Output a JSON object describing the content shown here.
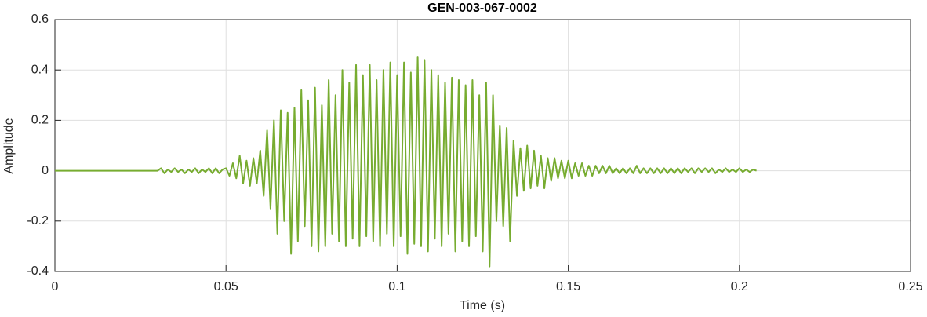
{
  "chart_data": {
    "type": "line",
    "title": "GEN-003-067-0002",
    "xlabel": "Time (s)",
    "ylabel": "Amplitude",
    "xlim": [
      0,
      0.25
    ],
    "xticks": [
      0,
      0.05,
      0.1,
      0.15,
      0.2,
      0.25
    ],
    "ylim": [
      -0.4,
      0.6
    ],
    "yticks": [
      -0.4,
      -0.2,
      0,
      0.2,
      0.4,
      0.6
    ],
    "grid": true,
    "series": [
      {
        "color": "#77ac30",
        "x": [
          0,
          0.03,
          0.031,
          0.032,
          0.033,
          0.034,
          0.035,
          0.036,
          0.037,
          0.038,
          0.039,
          0.04,
          0.041,
          0.042,
          0.043,
          0.044,
          0.045,
          0.046,
          0.047,
          0.048,
          0.049,
          0.05,
          0.051,
          0.052,
          0.053,
          0.054,
          0.055,
          0.056,
          0.057,
          0.058,
          0.059,
          0.06,
          0.061,
          0.062,
          0.063,
          0.064,
          0.065,
          0.066,
          0.067,
          0.068,
          0.069,
          0.07,
          0.071,
          0.072,
          0.073,
          0.074,
          0.075,
          0.076,
          0.077,
          0.078,
          0.079,
          0.08,
          0.081,
          0.082,
          0.083,
          0.084,
          0.085,
          0.086,
          0.087,
          0.088,
          0.089,
          0.09,
          0.091,
          0.092,
          0.093,
          0.094,
          0.095,
          0.096,
          0.097,
          0.098,
          0.099,
          0.1,
          0.101,
          0.102,
          0.103,
          0.104,
          0.105,
          0.106,
          0.107,
          0.108,
          0.109,
          0.11,
          0.111,
          0.112,
          0.113,
          0.114,
          0.115,
          0.116,
          0.117,
          0.118,
          0.119,
          0.12,
          0.121,
          0.122,
          0.123,
          0.124,
          0.125,
          0.126,
          0.127,
          0.128,
          0.129,
          0.13,
          0.131,
          0.132,
          0.133,
          0.134,
          0.135,
          0.136,
          0.137,
          0.138,
          0.139,
          0.14,
          0.141,
          0.142,
          0.143,
          0.144,
          0.145,
          0.146,
          0.147,
          0.148,
          0.149,
          0.15,
          0.151,
          0.152,
          0.153,
          0.154,
          0.155,
          0.156,
          0.157,
          0.158,
          0.159,
          0.16,
          0.161,
          0.162,
          0.163,
          0.164,
          0.165,
          0.166,
          0.167,
          0.168,
          0.169,
          0.17,
          0.171,
          0.172,
          0.173,
          0.174,
          0.175,
          0.176,
          0.177,
          0.178,
          0.179,
          0.18,
          0.181,
          0.182,
          0.183,
          0.184,
          0.185,
          0.186,
          0.187,
          0.188,
          0.189,
          0.19,
          0.191,
          0.192,
          0.193,
          0.194,
          0.195,
          0.196,
          0.197,
          0.198,
          0.199,
          0.2,
          0.201,
          0.202,
          0.203,
          0.204,
          0.205
        ],
        "values": [
          0,
          0,
          0.01,
          -0.01,
          0.005,
          -0.005,
          0.01,
          -0.005,
          0.005,
          -0.01,
          0.005,
          -0.005,
          0.01,
          -0.01,
          0.005,
          -0.005,
          0.01,
          -0.01,
          0.01,
          -0.01,
          0.005,
          0.01,
          -0.02,
          0.03,
          -0.03,
          0.06,
          -0.05,
          0.04,
          -0.06,
          0.05,
          -0.05,
          0.08,
          -0.1,
          0.16,
          -0.15,
          0.2,
          -0.25,
          0.24,
          -0.2,
          0.23,
          -0.33,
          0.25,
          -0.28,
          0.32,
          -0.22,
          0.28,
          -0.3,
          0.33,
          -0.32,
          0.26,
          -0.3,
          0.36,
          -0.25,
          0.3,
          -0.28,
          0.4,
          -0.3,
          0.35,
          -0.27,
          0.42,
          -0.3,
          0.38,
          -0.26,
          0.42,
          -0.28,
          0.36,
          -0.3,
          0.4,
          -0.25,
          0.43,
          -0.3,
          0.38,
          -0.26,
          0.43,
          -0.33,
          0.39,
          -0.29,
          0.45,
          -0.3,
          0.44,
          -0.32,
          0.4,
          -0.27,
          0.38,
          -0.3,
          0.35,
          -0.25,
          0.37,
          -0.32,
          0.36,
          -0.28,
          0.34,
          -0.3,
          0.36,
          -0.26,
          0.3,
          -0.32,
          0.35,
          -0.38,
          0.3,
          -0.2,
          0.18,
          -0.22,
          0.17,
          -0.28,
          0.12,
          -0.1,
          0.09,
          -0.08,
          0.1,
          -0.07,
          0.08,
          -0.06,
          0.06,
          -0.07,
          0.05,
          -0.04,
          0.05,
          -0.03,
          0.04,
          -0.03,
          0.04,
          -0.03,
          0.03,
          -0.02,
          0.03,
          -0.02,
          0.02,
          -0.02,
          0.02,
          -0.01,
          0.02,
          -0.01,
          0.02,
          -0.01,
          0.01,
          -0.01,
          0.01,
          -0.01,
          0.01,
          -0.01,
          0.02,
          -0.01,
          0.01,
          -0.01,
          0.01,
          -0.01,
          0.01,
          -0.01,
          0.01,
          -0.01,
          0.01,
          -0.01,
          0.01,
          -0.01,
          0.01,
          -0.005,
          0.01,
          -0.01,
          0.01,
          -0.005,
          0.01,
          -0.005,
          0.01,
          -0.01,
          0.005,
          -0.005,
          0.01,
          -0.005,
          0.005,
          -0.005,
          0.01,
          -0.005,
          0.005,
          -0.005,
          0.005,
          0
        ]
      }
    ]
  }
}
